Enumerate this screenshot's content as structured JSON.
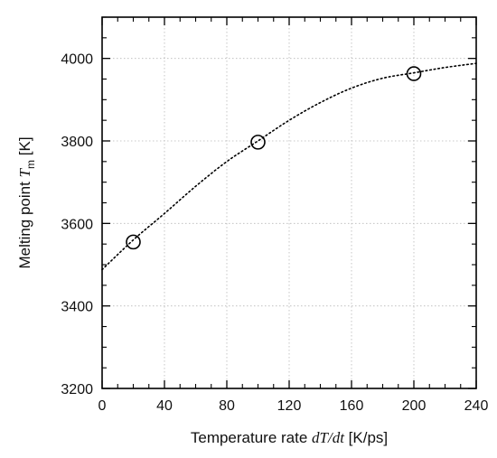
{
  "chart_data": {
    "type": "scatter",
    "xlabel": {
      "prefix": "Temperature rate ",
      "math": "dT/dt",
      "suffix": " [K/ps]"
    },
    "ylabel": {
      "prefix": "Melting point ",
      "math": "T",
      "subscript": "m",
      "suffix": " [K]"
    },
    "xlim": [
      0,
      240
    ],
    "ylim": [
      3200,
      4100
    ],
    "xticks": [
      0,
      40,
      80,
      120,
      160,
      200,
      240
    ],
    "yticks": [
      3200,
      3400,
      3600,
      3800,
      4000
    ],
    "grid": true,
    "series": [
      {
        "marker": "open-circle",
        "x": [
          20,
          100,
          200
        ],
        "y": [
          3555,
          3797,
          3963
        ]
      }
    ],
    "fit_curve": {
      "style": "dotted",
      "x": [
        0,
        20,
        40,
        60,
        80,
        100,
        120,
        140,
        160,
        180,
        200,
        220,
        240
      ],
      "y": [
        3488,
        3560,
        3624,
        3690,
        3750,
        3800,
        3850,
        3893,
        3928,
        3952,
        3965,
        3978,
        3988
      ]
    }
  }
}
